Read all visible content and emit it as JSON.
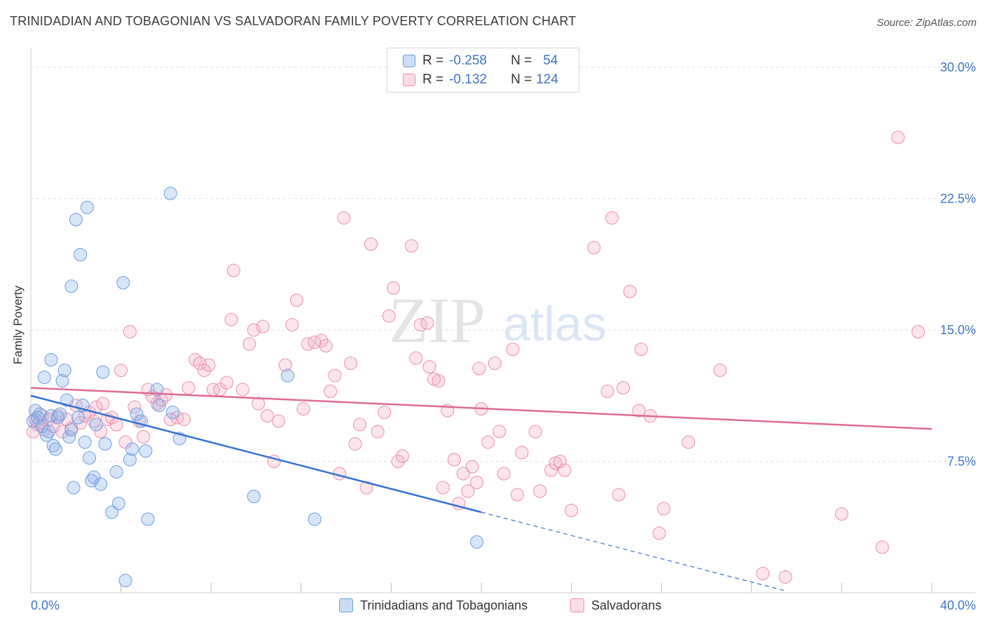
{
  "header": {
    "title": "TRINIDADIAN AND TOBAGONIAN VS SALVADORAN FAMILY POVERTY CORRELATION CHART",
    "source": "Source: ZipAtlas.com"
  },
  "watermark": {
    "zip": "ZIP",
    "atlas": "atlas"
  },
  "legend": {
    "rows": [
      {
        "r_label": "R =",
        "r_value": "-0.258",
        "n_label": "N =",
        "n_value": "54",
        "color": "#a8c8f0"
      },
      {
        "r_label": "R =",
        "r_value": "-0.132",
        "n_label": "N =",
        "n_value": "124",
        "color": "#f5b8cb"
      }
    ]
  },
  "bottom_legend": [
    {
      "label": "Trinidadians and Tobagonians",
      "color": "#a8c8f0"
    },
    {
      "label": "Salvadorans",
      "color": "#f5b8cb"
    }
  ],
  "colors": {
    "blue_fill": "rgba(140,180,235,0.35)",
    "blue_stroke": "#6e9fdc",
    "blue_line": "#3373d1",
    "pink_fill": "rgba(245,170,195,0.30)",
    "pink_stroke": "#e890ae",
    "pink_line": "#e06a93",
    "tick": "#3f74c9"
  },
  "chart_data": {
    "type": "scatter",
    "title": "TRINIDADIAN AND TOBAGONIAN VS SALVADORAN FAMILY POVERTY CORRELATION CHART",
    "xlabel": "",
    "ylabel": "Family Poverty",
    "xlim": [
      0,
      40
    ],
    "ylim": [
      0,
      30
    ],
    "x_tick_labels": [
      {
        "value": 0,
        "label": "0.0%"
      },
      {
        "value": 40,
        "label": "40.0%"
      }
    ],
    "y_tick_labels": [
      {
        "value": 7.5,
        "label": "7.5%"
      },
      {
        "value": 15,
        "label": "15.0%"
      },
      {
        "value": 22.5,
        "label": "22.5%"
      },
      {
        "value": 30,
        "label": "30.0%"
      }
    ],
    "grid": true,
    "series": [
      {
        "name": "Trinidadians and Tobagonians",
        "R": -0.258,
        "N": 54,
        "trend": {
          "x0": 0,
          "y0": 11.25,
          "x1": 20,
          "y1": 4.6,
          "dash_to_x": 33.5
        },
        "points": [
          [
            0.1,
            9.8
          ],
          [
            0.2,
            10.4
          ],
          [
            0.3,
            10.0
          ],
          [
            0.4,
            10.2
          ],
          [
            0.5,
            9.5
          ],
          [
            0.6,
            12.3
          ],
          [
            0.7,
            9.0
          ],
          [
            0.8,
            9.2
          ],
          [
            0.9,
            10.1
          ],
          [
            0.9,
            13.3
          ],
          [
            1.0,
            8.4
          ],
          [
            1.1,
            8.2
          ],
          [
            1.2,
            10.0
          ],
          [
            1.3,
            10.2
          ],
          [
            1.4,
            12.1
          ],
          [
            1.5,
            12.7
          ],
          [
            1.6,
            11.0
          ],
          [
            1.7,
            8.9
          ],
          [
            1.8,
            9.3
          ],
          [
            1.8,
            17.5
          ],
          [
            1.9,
            6.0
          ],
          [
            2.0,
            21.3
          ],
          [
            2.1,
            10.0
          ],
          [
            2.2,
            19.3
          ],
          [
            2.3,
            10.7
          ],
          [
            2.4,
            8.6
          ],
          [
            2.5,
            22.0
          ],
          [
            2.6,
            7.7
          ],
          [
            2.7,
            6.4
          ],
          [
            2.8,
            6.6
          ],
          [
            2.9,
            9.6
          ],
          [
            3.1,
            6.2
          ],
          [
            3.2,
            12.6
          ],
          [
            3.3,
            8.5
          ],
          [
            3.6,
            4.6
          ],
          [
            3.8,
            6.9
          ],
          [
            3.9,
            5.1
          ],
          [
            4.1,
            17.7
          ],
          [
            4.2,
            0.7
          ],
          [
            4.4,
            7.6
          ],
          [
            4.5,
            8.2
          ],
          [
            4.7,
            10.2
          ],
          [
            4.9,
            9.8
          ],
          [
            5.1,
            8.1
          ],
          [
            5.2,
            4.2
          ],
          [
            5.6,
            11.6
          ],
          [
            5.7,
            10.7
          ],
          [
            6.2,
            22.8
          ],
          [
            6.3,
            10.3
          ],
          [
            6.6,
            8.8
          ],
          [
            9.9,
            5.5
          ],
          [
            11.4,
            12.4
          ],
          [
            12.6,
            4.2
          ],
          [
            19.8,
            2.9
          ]
        ]
      },
      {
        "name": "Salvadorans",
        "R": -0.132,
        "N": 124,
        "trend": {
          "x0": 0,
          "y0": 11.7,
          "x1": 40,
          "y1": 9.35
        },
        "points": [
          [
            0.1,
            9.2
          ],
          [
            0.2,
            9.9
          ],
          [
            0.3,
            9.6
          ],
          [
            0.4,
            9.7
          ],
          [
            0.5,
            10.1
          ],
          [
            0.6,
            9.3
          ],
          [
            0.8,
            9.9
          ],
          [
            1.0,
            9.5
          ],
          [
            1.2,
            10.1
          ],
          [
            1.4,
            9.2
          ],
          [
            1.6,
            9.9
          ],
          [
            1.8,
            9.4
          ],
          [
            2.0,
            10.7
          ],
          [
            2.2,
            9.7
          ],
          [
            2.4,
            10.1
          ],
          [
            2.6,
            10.3
          ],
          [
            2.8,
            9.8
          ],
          [
            2.9,
            10.6
          ],
          [
            3.1,
            9.2
          ],
          [
            3.2,
            10.8
          ],
          [
            3.4,
            9.9
          ],
          [
            3.6,
            10.0
          ],
          [
            3.8,
            9.6
          ],
          [
            4.0,
            12.7
          ],
          [
            4.2,
            8.6
          ],
          [
            4.4,
            14.9
          ],
          [
            4.6,
            10.6
          ],
          [
            4.8,
            9.8
          ],
          [
            5.0,
            8.9
          ],
          [
            5.2,
            11.6
          ],
          [
            5.4,
            11.2
          ],
          [
            5.6,
            10.8
          ],
          [
            5.8,
            11.0
          ],
          [
            6.0,
            11.3
          ],
          [
            6.2,
            9.9
          ],
          [
            6.5,
            10.0
          ],
          [
            6.8,
            9.9
          ],
          [
            7.0,
            11.7
          ],
          [
            7.3,
            13.3
          ],
          [
            7.5,
            13.1
          ],
          [
            7.7,
            12.7
          ],
          [
            7.9,
            13.0
          ],
          [
            8.1,
            11.6
          ],
          [
            8.4,
            11.6
          ],
          [
            8.7,
            12.0
          ],
          [
            8.9,
            15.6
          ],
          [
            9.0,
            18.4
          ],
          [
            9.4,
            11.6
          ],
          [
            9.7,
            14.2
          ],
          [
            9.9,
            15.0
          ],
          [
            10.1,
            10.8
          ],
          [
            10.3,
            15.2
          ],
          [
            10.5,
            10.1
          ],
          [
            10.8,
            7.5
          ],
          [
            11.0,
            9.8
          ],
          [
            11.3,
            13.0
          ],
          [
            11.6,
            15.3
          ],
          [
            11.8,
            16.7
          ],
          [
            12.1,
            10.5
          ],
          [
            12.3,
            14.2
          ],
          [
            12.6,
            14.3
          ],
          [
            12.9,
            14.4
          ],
          [
            13.1,
            14.1
          ],
          [
            13.3,
            11.5
          ],
          [
            13.5,
            12.4
          ],
          [
            13.7,
            6.8
          ],
          [
            13.9,
            21.4
          ],
          [
            14.2,
            13.1
          ],
          [
            14.4,
            8.5
          ],
          [
            14.6,
            9.6
          ],
          [
            14.9,
            6.0
          ],
          [
            15.1,
            19.9
          ],
          [
            15.4,
            9.2
          ],
          [
            15.7,
            10.3
          ],
          [
            15.9,
            15.8
          ],
          [
            16.1,
            17.4
          ],
          [
            16.3,
            7.5
          ],
          [
            16.5,
            7.8
          ],
          [
            16.9,
            19.8
          ],
          [
            17.1,
            13.4
          ],
          [
            17.3,
            15.3
          ],
          [
            17.6,
            15.4
          ],
          [
            17.7,
            12.9
          ],
          [
            17.9,
            12.2
          ],
          [
            18.1,
            12.1
          ],
          [
            18.3,
            6.0
          ],
          [
            18.5,
            10.4
          ],
          [
            18.8,
            7.6
          ],
          [
            19.0,
            5.1
          ],
          [
            19.2,
            6.8
          ],
          [
            19.4,
            5.8
          ],
          [
            19.6,
            7.2
          ],
          [
            19.8,
            6.3
          ],
          [
            19.9,
            12.8
          ],
          [
            20.0,
            10.5
          ],
          [
            20.3,
            8.6
          ],
          [
            20.6,
            13.1
          ],
          [
            20.8,
            9.2
          ],
          [
            21.0,
            6.8
          ],
          [
            21.4,
            13.9
          ],
          [
            21.6,
            5.6
          ],
          [
            21.8,
            8.0
          ],
          [
            22.4,
            9.2
          ],
          [
            22.6,
            5.8
          ],
          [
            23.1,
            7.0
          ],
          [
            23.3,
            7.4
          ],
          [
            23.5,
            7.5
          ],
          [
            23.7,
            7.0
          ],
          [
            24.0,
            4.7
          ],
          [
            25.0,
            19.7
          ],
          [
            25.6,
            11.5
          ],
          [
            25.8,
            21.4
          ],
          [
            26.1,
            5.6
          ],
          [
            26.3,
            11.7
          ],
          [
            26.6,
            17.2
          ],
          [
            27.0,
            10.4
          ],
          [
            27.1,
            13.9
          ],
          [
            27.5,
            10.1
          ],
          [
            27.9,
            3.4
          ],
          [
            28.1,
            4.8
          ],
          [
            29.2,
            8.6
          ],
          [
            30.6,
            12.7
          ],
          [
            32.5,
            1.1
          ],
          [
            33.5,
            0.9
          ],
          [
            36.0,
            4.5
          ],
          [
            37.8,
            2.6
          ],
          [
            38.5,
            26.0
          ],
          [
            39.4,
            14.9
          ]
        ]
      }
    ]
  }
}
